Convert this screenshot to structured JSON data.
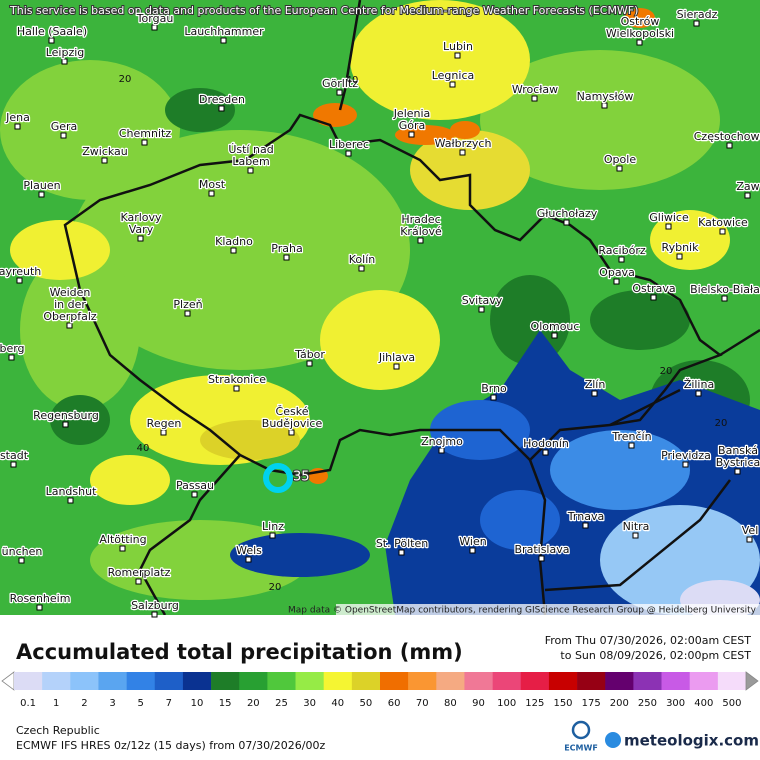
{
  "notice": "This service is based on data and products of the European Centre for Medium-range Weather Forecasts (ECMWF)",
  "attribution": "Map data © OpenStreetMap contributors, rendering GIScience Research Group @ Heidelberg University",
  "cities": [
    [
      "Torgau"
    ],
    [
      "Halle (Saale)"
    ],
    [
      "Lauchhammer"
    ],
    [
      "Ostrów",
      "Wielkopolski"
    ],
    [
      "Sieradz"
    ],
    [
      "Leipzig"
    ],
    [
      "Lubin"
    ],
    [
      "Legnica"
    ],
    [
      "Görlitz"
    ],
    [
      "Wrocław"
    ],
    [
      "Namysłów"
    ],
    [
      "Dresden"
    ],
    [
      "Jena"
    ],
    [
      "Gera"
    ],
    [
      "Chemnitz"
    ],
    [
      "Jelenia",
      "Góra"
    ],
    [
      "Wałbrzych"
    ],
    [
      "Częstochowa"
    ],
    [
      "Zwickau"
    ],
    [
      "Ústí nad",
      "Labem"
    ],
    [
      "Liberec"
    ],
    [
      "Opole"
    ],
    [
      "Plauen"
    ],
    [
      "Most"
    ],
    [
      "Zaw"
    ],
    [
      "Karlovy",
      "Vary"
    ],
    [
      "Hradec",
      "Králové"
    ],
    [
      "Głuchołazy"
    ],
    [
      "Gliwice"
    ],
    [
      "Katowice"
    ],
    [
      "Kladno"
    ],
    [
      "Praha"
    ],
    [
      "Racibórz"
    ],
    [
      "Rybnik"
    ],
    [
      "ayreuth"
    ],
    [
      "Kolín"
    ],
    [
      "Opava"
    ],
    [
      "Weiden",
      "in der",
      "Oberpfalz"
    ],
    [
      "Plzeň"
    ],
    [
      "Ostrava"
    ],
    [
      "Bielsko-Biała"
    ],
    [
      "Svitavy"
    ],
    [
      "Olomouc"
    ],
    [
      "Tábor"
    ],
    [
      "Jihlava"
    ],
    [
      "berg"
    ],
    [
      "Strakonice"
    ],
    [
      "Brno"
    ],
    [
      "Zlín"
    ],
    [
      "Žilina"
    ],
    [
      "Regensburg"
    ],
    [
      "Regen"
    ],
    [
      "České",
      "Budějovice"
    ],
    [
      "Znojmo"
    ],
    [
      "Hodonín"
    ],
    [
      "Trenčín"
    ],
    [
      "Banská",
      "Bystrica"
    ],
    [
      "stadt"
    ],
    [
      "Prievidza"
    ],
    [
      "Passau"
    ],
    [
      "Landshut"
    ],
    [
      "Trnava"
    ],
    [
      "Nitra"
    ],
    [
      "Linz"
    ],
    [
      "Altötting"
    ],
    [
      "St. Pölten"
    ],
    [
      "Wien"
    ],
    [
      "Bratislava"
    ],
    [
      "Wels"
    ],
    [
      "ünchen"
    ],
    [
      "Vel"
    ],
    [
      "Rosenheim"
    ],
    [
      "Romerplatz"
    ],
    [
      "Salzburg"
    ]
  ],
  "contour_labels": [
    "20",
    "40",
    "40",
    "20",
    "20",
    "20"
  ],
  "point_label": "35",
  "title": "Accumulated total precipitation (mm)",
  "period": [
    "From Thu 07/30/2026, 02:00am CEST",
    "to Sun 08/09/2026, 02:00pm CEST"
  ],
  "colorbar": {
    "ticks": [
      0.1,
      1,
      2,
      3,
      5,
      7,
      10,
      15,
      20,
      25,
      30,
      40,
      50,
      60,
      70,
      80,
      90,
      100,
      125,
      150,
      175,
      200,
      250,
      300,
      400,
      500
    ],
    "colors": [
      "#dcdcf5",
      "#b4d2fa",
      "#8cc3fa",
      "#5aa5f0",
      "#3282e6",
      "#1e5fc8",
      "#0a3291",
      "#1e7d28",
      "#28a032",
      "#50c83c",
      "#96eb46",
      "#f5f532",
      "#dcd228",
      "#f06e00",
      "#fa9632",
      "#f5aa82",
      "#f07896",
      "#eb4678",
      "#e61e46",
      "#c80000",
      "#960014",
      "#64006e",
      "#8c32b4",
      "#c85ae6",
      "#eb9bf0",
      "#f5dcfa"
    ],
    "under_color": "#ffffff",
    "over_color": "#9a9a9a"
  },
  "region": "Czech Republic",
  "model": "ECMWF IFS HRES 0z/12z (15 days) from  07/30/2026/00z",
  "logos": [
    "ECMWF",
    "meteologix.com"
  ]
}
